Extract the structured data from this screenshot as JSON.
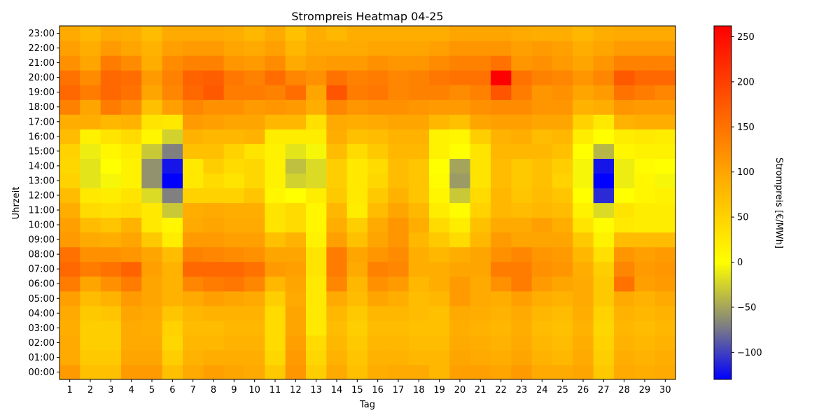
{
  "chart_data": {
    "type": "heatmap",
    "title": "Strompreis Heatmap 04-25",
    "xlabel": "Tag",
    "ylabel": "Uhrzeit",
    "colorbar_label": "Strompreis [€/MWh]",
    "colorbar_ticks": [
      "250",
      "200",
      "150",
      "100",
      "50",
      "0",
      "−50",
      "−100"
    ],
    "colorbar_tick_values": [
      250,
      200,
      150,
      100,
      50,
      0,
      -50,
      -100
    ],
    "vmin": -130,
    "vmax": 262,
    "colormap": [
      {
        "v": -130,
        "color": "#0000ff"
      },
      {
        "v": -70,
        "color": "#808080"
      },
      {
        "v": 0,
        "color": "#ffff00"
      },
      {
        "v": 100,
        "color": "#ffa500"
      },
      {
        "v": 262,
        "color": "#ff0000"
      }
    ],
    "x_categories": [
      "1",
      "2",
      "3",
      "4",
      "5",
      "6",
      "7",
      "8",
      "9",
      "10",
      "11",
      "12",
      "13",
      "14",
      "15",
      "16",
      "17",
      "18",
      "19",
      "20",
      "21",
      "22",
      "23",
      "24",
      "25",
      "26",
      "27",
      "28",
      "29",
      "30"
    ],
    "y_categories": [
      "00:00",
      "01:00",
      "02:00",
      "03:00",
      "04:00",
      "05:00",
      "06:00",
      "07:00",
      "08:00",
      "09:00",
      "10:00",
      "11:00",
      "12:00",
      "13:00",
      "14:00",
      "15:00",
      "16:00",
      "17:00",
      "18:00",
      "19:00",
      "20:00",
      "21:00",
      "22:00",
      "23:00"
    ],
    "values": [
      [
        110,
        70,
        70,
        110,
        110,
        70,
        95,
        105,
        100,
        95,
        60,
        115,
        55,
        95,
        70,
        90,
        95,
        95,
        80,
        105,
        105,
        100,
        110,
        95,
        95,
        100,
        60,
        95,
        90,
        95
      ],
      [
        95,
        60,
        60,
        100,
        100,
        55,
        85,
        90,
        90,
        90,
        45,
        110,
        45,
        85,
        65,
        85,
        85,
        80,
        80,
        100,
        95,
        90,
        100,
        85,
        80,
        95,
        55,
        90,
        85,
        90
      ],
      [
        95,
        55,
        55,
        95,
        95,
        45,
        80,
        80,
        85,
        85,
        40,
        105,
        40,
        80,
        60,
        80,
        80,
        75,
        75,
        95,
        90,
        85,
        95,
        80,
        75,
        90,
        50,
        85,
        80,
        85
      ],
      [
        90,
        55,
        55,
        95,
        90,
        50,
        75,
        75,
        80,
        80,
        40,
        100,
        25,
        75,
        55,
        75,
        75,
        70,
        70,
        90,
        85,
        80,
        90,
        75,
        70,
        85,
        45,
        80,
        75,
        80
      ],
      [
        95,
        60,
        65,
        100,
        95,
        65,
        80,
        85,
        85,
        85,
        40,
        100,
        25,
        80,
        60,
        80,
        80,
        75,
        70,
        95,
        90,
        85,
        95,
        80,
        75,
        90,
        50,
        85,
        80,
        85
      ],
      [
        105,
        75,
        85,
        110,
        100,
        85,
        95,
        105,
        100,
        95,
        55,
        95,
        25,
        95,
        75,
        100,
        90,
        75,
        80,
        110,
        95,
        90,
        105,
        90,
        85,
        95,
        60,
        95,
        85,
        95
      ],
      [
        140,
        100,
        120,
        140,
        100,
        85,
        130,
        140,
        145,
        130,
        80,
        100,
        25,
        130,
        80,
        120,
        110,
        80,
        90,
        110,
        95,
        120,
        140,
        110,
        100,
        95,
        60,
        150,
        105,
        110
      ],
      [
        160,
        140,
        150,
        165,
        105,
        85,
        160,
        160,
        160,
        150,
        110,
        105,
        30,
        140,
        95,
        135,
        130,
        90,
        90,
        100,
        100,
        140,
        140,
        120,
        115,
        90,
        55,
        130,
        110,
        115
      ],
      [
        150,
        120,
        120,
        115,
        100,
        75,
        135,
        130,
        125,
        120,
        100,
        100,
        30,
        140,
        100,
        115,
        125,
        90,
        80,
        90,
        100,
        120,
        130,
        115,
        110,
        80,
        35,
        115,
        105,
        110
      ],
      [
        110,
        95,
        90,
        100,
        60,
        20,
        110,
        110,
        105,
        105,
        70,
        85,
        15,
        105,
        70,
        100,
        115,
        80,
        60,
        40,
        80,
        110,
        100,
        100,
        100,
        60,
        15,
        75,
        75,
        75
      ],
      [
        105,
        75,
        65,
        85,
        25,
        10,
        95,
        100,
        95,
        95,
        30,
        40,
        10,
        90,
        55,
        95,
        115,
        90,
        40,
        20,
        70,
        95,
        95,
        105,
        90,
        30,
        5,
        25,
        20,
        20
      ],
      [
        90,
        40,
        35,
        40,
        25,
        -30,
        90,
        95,
        90,
        90,
        30,
        40,
        10,
        80,
        20,
        75,
        100,
        80,
        20,
        5,
        50,
        80,
        75,
        80,
        75,
        15,
        -20,
        30,
        20,
        20
      ],
      [
        75,
        25,
        20,
        30,
        -20,
        -70,
        50,
        50,
        50,
        65,
        10,
        0,
        20,
        60,
        25,
        60,
        85,
        65,
        10,
        -30,
        40,
        80,
        65,
        75,
        65,
        0,
        -110,
        0,
        10,
        15
      ],
      [
        50,
        -15,
        -5,
        15,
        -60,
        -130,
        25,
        40,
        30,
        45,
        15,
        -25,
        -20,
        55,
        25,
        45,
        75,
        65,
        5,
        -55,
        30,
        75,
        60,
        70,
        50,
        -5,
        -130,
        -10,
        10,
        -5
      ],
      [
        45,
        -15,
        0,
        15,
        -60,
        -120,
        25,
        55,
        40,
        45,
        15,
        -35,
        -20,
        55,
        25,
        40,
        75,
        65,
        0,
        -50,
        30,
        75,
        60,
        70,
        55,
        -5,
        -120,
        -10,
        5,
        0
      ],
      [
        50,
        -10,
        10,
        20,
        -30,
        -70,
        70,
        70,
        50,
        30,
        15,
        -15,
        -5,
        75,
        40,
        60,
        80,
        80,
        15,
        0,
        30,
        80,
        80,
        80,
        70,
        0,
        -40,
        10,
        15,
        15
      ],
      [
        75,
        15,
        30,
        40,
        10,
        -25,
        85,
        80,
        80,
        85,
        20,
        20,
        20,
        90,
        70,
        75,
        85,
        85,
        15,
        10,
        55,
        85,
        90,
        75,
        80,
        20,
        0,
        20,
        25,
        20
      ],
      [
        90,
        90,
        80,
        85,
        30,
        25,
        110,
        105,
        100,
        100,
        80,
        80,
        35,
        95,
        90,
        95,
        100,
        100,
        80,
        70,
        100,
        105,
        105,
        100,
        100,
        50,
        25,
        85,
        90,
        90
      ],
      [
        135,
        100,
        140,
        125,
        70,
        105,
        130,
        120,
        120,
        110,
        115,
        110,
        90,
        130,
        115,
        120,
        120,
        115,
        110,
        110,
        120,
        125,
        125,
        115,
        115,
        85,
        90,
        115,
        110,
        110
      ],
      [
        160,
        140,
        160,
        150,
        100,
        130,
        160,
        175,
        140,
        140,
        135,
        155,
        100,
        180,
        140,
        145,
        130,
        135,
        135,
        125,
        135,
        180,
        140,
        115,
        120,
        100,
        110,
        150,
        140,
        130
      ],
      [
        150,
        125,
        160,
        155,
        110,
        135,
        165,
        170,
        145,
        135,
        155,
        130,
        120,
        150,
        135,
        140,
        130,
        135,
        145,
        150,
        150,
        262,
        150,
        135,
        130,
        115,
        130,
        175,
        160,
        160
      ],
      [
        120,
        100,
        140,
        125,
        90,
        125,
        135,
        135,
        115,
        110,
        125,
        95,
        105,
        110,
        110,
        120,
        115,
        115,
        125,
        135,
        135,
        150,
        115,
        120,
        110,
        100,
        115,
        135,
        135,
        135
      ],
      [
        105,
        90,
        110,
        100,
        85,
        105,
        110,
        110,
        100,
        95,
        105,
        80,
        95,
        95,
        95,
        100,
        100,
        100,
        105,
        115,
        115,
        115,
        105,
        110,
        105,
        90,
        100,
        110,
        110,
        110
      ],
      [
        95,
        80,
        95,
        90,
        75,
        95,
        95,
        95,
        90,
        80,
        95,
        70,
        90,
        80,
        90,
        90,
        90,
        90,
        90,
        100,
        100,
        100,
        95,
        90,
        90,
        80,
        90,
        95,
        95,
        95
      ]
    ]
  }
}
